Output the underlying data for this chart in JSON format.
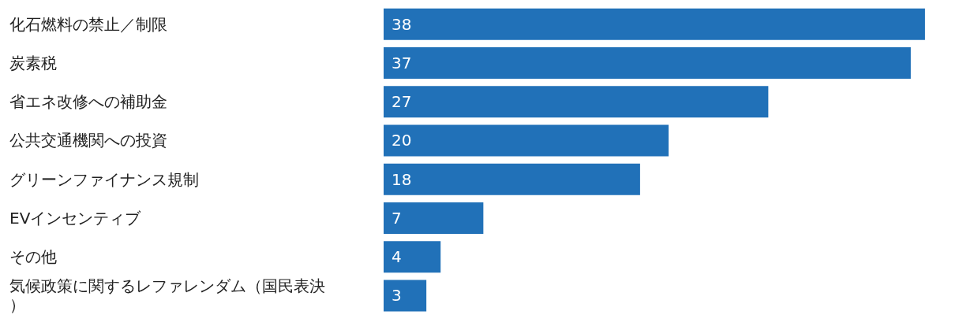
{
  "chart_data": {
    "type": "bar",
    "orientation": "horizontal",
    "categories": [
      "化石燃料の禁止／制限",
      "炭素税",
      "省エネ改修への補助金",
      "公共交通機関への投資",
      "グリーンファイナンス規制",
      "EVインセンティブ",
      "その他",
      "気候政策に関するレファレンダム（国民表決）"
    ],
    "values": [
      38,
      37,
      27,
      20,
      18,
      7,
      4,
      3
    ],
    "color": "#2171b8",
    "data_labels": true
  }
}
